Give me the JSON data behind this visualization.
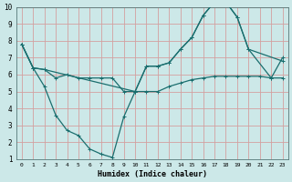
{
  "title": "",
  "xlabel": "Humidex (Indice chaleur)",
  "bg_color": "#cce8e8",
  "grid_color": "#d4a0a0",
  "line_color": "#1a6e6e",
  "xlim": [
    -0.5,
    23.5
  ],
  "ylim": [
    1,
    10
  ],
  "xticks": [
    0,
    1,
    2,
    3,
    4,
    5,
    6,
    7,
    8,
    9,
    10,
    11,
    12,
    13,
    14,
    15,
    16,
    17,
    18,
    19,
    20,
    21,
    22,
    23
  ],
  "yticks": [
    1,
    2,
    3,
    4,
    5,
    6,
    7,
    8,
    9,
    10
  ],
  "line1_x": [
    0,
    1,
    2,
    3,
    4,
    5,
    6,
    7,
    8,
    9,
    10,
    11,
    12,
    13,
    14,
    15,
    16,
    17,
    18,
    19,
    20,
    21,
    22,
    23
  ],
  "line1_y": [
    7.8,
    6.4,
    6.3,
    5.8,
    6.0,
    5.8,
    5.8,
    5.8,
    5.8,
    5.0,
    5.0,
    5.0,
    5.0,
    5.3,
    5.5,
    5.7,
    5.8,
    5.9,
    5.9,
    5.9,
    5.9,
    5.9,
    5.8,
    5.8
  ],
  "line2_x": [
    0,
    1,
    2,
    3,
    4,
    5,
    6,
    7,
    8,
    9,
    10,
    11,
    12,
    13,
    14,
    15,
    16,
    17,
    18,
    19,
    20,
    23
  ],
  "line2_y": [
    7.8,
    6.4,
    5.3,
    3.6,
    2.7,
    2.4,
    1.6,
    1.3,
    1.1,
    3.5,
    5.0,
    6.5,
    6.5,
    6.7,
    7.5,
    8.2,
    9.5,
    10.3,
    10.3,
    9.4,
    7.5,
    6.8
  ],
  "line3_x": [
    0,
    1,
    2,
    10,
    11,
    12,
    13,
    14,
    15,
    16,
    17,
    18,
    19,
    20,
    22,
    23
  ],
  "line3_y": [
    7.8,
    6.4,
    6.3,
    5.0,
    6.5,
    6.5,
    6.7,
    7.5,
    8.2,
    9.5,
    10.3,
    10.3,
    9.4,
    7.5,
    5.8,
    7.0
  ],
  "marker_size": 2.5,
  "linewidth": 0.9
}
